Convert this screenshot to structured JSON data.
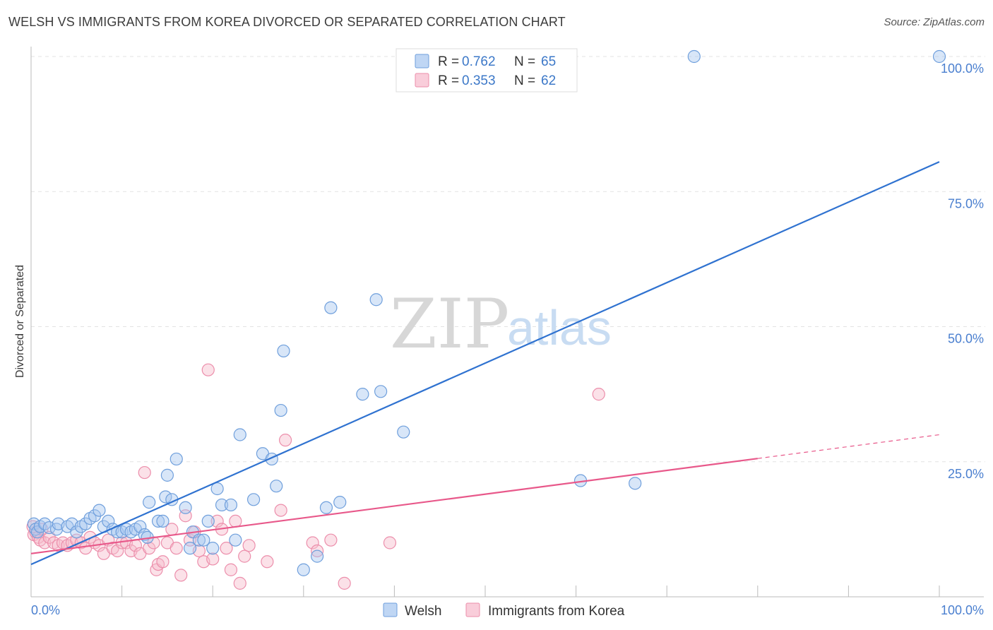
{
  "title": "WELSH VS IMMIGRANTS FROM KOREA DIVORCED OR SEPARATED CORRELATION CHART",
  "source": "Source: ZipAtlas.com",
  "watermark": {
    "zip": "ZIP",
    "atlas": "atlas"
  },
  "colors": {
    "welsh_fill": "#a9c8f0",
    "welsh_stroke": "#6f9fdc",
    "welsh_line": "#2f72d0",
    "korea_fill": "#f7bccd",
    "korea_stroke": "#ec8eab",
    "korea_line": "#e8588a",
    "grid": "#e3e3e3",
    "tick": "#4a7fcf"
  },
  "legend": {
    "rows": [
      {
        "r_label": "R =",
        "r_value": "0.762",
        "n_label": "N =",
        "n_value": "65"
      },
      {
        "r_label": "R =",
        "r_value": "0.353",
        "n_label": "N =",
        "n_value": "62"
      }
    ]
  },
  "bottom_legend": {
    "welsh": "Welsh",
    "korea": "Immigrants from Korea"
  },
  "chart_data": {
    "type": "scatter",
    "title": "WELSH VS IMMIGRANTS FROM KOREA DIVORCED OR SEPARATED CORRELATION CHART",
    "xlabel": "",
    "ylabel": "Divorced or Separated",
    "xlim": [
      0,
      100
    ],
    "ylim": [
      0,
      100
    ],
    "x_tick_labels": [
      "0.0%",
      "100.0%"
    ],
    "y_ticks": [
      {
        "value": 25,
        "label": "25.0%"
      },
      {
        "value": 50,
        "label": "50.0%"
      },
      {
        "value": 75,
        "label": "75.0%"
      },
      {
        "value": 100,
        "label": "100.0%"
      }
    ],
    "series": [
      {
        "name": "Welsh",
        "r": 0.762,
        "n": 65,
        "trend": {
          "x0": 0,
          "y0": 6.0,
          "x1": 100,
          "y1": 80.5,
          "dashed_from": null
        },
        "points": [
          [
            0.3,
            13.5
          ],
          [
            0.5,
            12.5
          ],
          [
            0.7,
            12.0
          ],
          [
            1.0,
            13.0
          ],
          [
            1.5,
            13.5
          ],
          [
            2.0,
            12.8
          ],
          [
            2.8,
            12.5
          ],
          [
            3.0,
            13.5
          ],
          [
            4.0,
            13.0
          ],
          [
            4.5,
            13.5
          ],
          [
            5.0,
            12.0
          ],
          [
            5.5,
            13.0
          ],
          [
            6.0,
            13.5
          ],
          [
            6.5,
            14.5
          ],
          [
            7.0,
            15.0
          ],
          [
            7.5,
            16.0
          ],
          [
            8.0,
            13.0
          ],
          [
            8.5,
            14.0
          ],
          [
            9.0,
            12.5
          ],
          [
            9.5,
            12.0
          ],
          [
            10.0,
            12.0
          ],
          [
            10.5,
            12.5
          ],
          [
            11.0,
            12.0
          ],
          [
            11.5,
            12.5
          ],
          [
            12.0,
            13.0
          ],
          [
            12.5,
            11.5
          ],
          [
            12.8,
            11.0
          ],
          [
            13.0,
            17.5
          ],
          [
            14.0,
            14.0
          ],
          [
            14.5,
            14.0
          ],
          [
            14.8,
            18.5
          ],
          [
            15.0,
            22.5
          ],
          [
            15.5,
            18.0
          ],
          [
            16.0,
            25.5
          ],
          [
            17.0,
            16.5
          ],
          [
            17.5,
            9.0
          ],
          [
            17.8,
            12.0
          ],
          [
            18.5,
            10.5
          ],
          [
            19.0,
            10.5
          ],
          [
            19.5,
            14.0
          ],
          [
            20.0,
            9.0
          ],
          [
            20.5,
            20.0
          ],
          [
            21.0,
            17.0
          ],
          [
            22.0,
            17.0
          ],
          [
            22.5,
            10.5
          ],
          [
            23.0,
            30.0
          ],
          [
            24.5,
            18.0
          ],
          [
            25.5,
            26.5
          ],
          [
            26.5,
            25.5
          ],
          [
            27.0,
            20.5
          ],
          [
            27.5,
            34.5
          ],
          [
            27.8,
            45.5
          ],
          [
            30.0,
            5.0
          ],
          [
            31.5,
            7.5
          ],
          [
            32.5,
            16.5
          ],
          [
            33.0,
            53.5
          ],
          [
            34.0,
            17.5
          ],
          [
            36.5,
            37.5
          ],
          [
            38.0,
            55.0
          ],
          [
            38.5,
            38.0
          ],
          [
            41.0,
            30.5
          ],
          [
            60.5,
            21.5
          ],
          [
            66.5,
            21.0
          ],
          [
            73.0,
            100.0
          ],
          [
            100.0,
            100.0
          ]
        ]
      },
      {
        "name": "Immigrants from Korea",
        "r": 0.353,
        "n": 62,
        "trend": {
          "x0": 0,
          "y0": 8.0,
          "x1": 100,
          "y1": 30.0,
          "dashed_from": 80
        },
        "points": [
          [
            0.3,
            11.5
          ],
          [
            0.5,
            12.0
          ],
          [
            0.8,
            11.0
          ],
          [
            1.0,
            10.5
          ],
          [
            1.5,
            10.0
          ],
          [
            2.0,
            11.0
          ],
          [
            2.5,
            10.0
          ],
          [
            3.0,
            9.5
          ],
          [
            3.5,
            10.0
          ],
          [
            4.0,
            9.5
          ],
          [
            4.5,
            10.0
          ],
          [
            5.0,
            10.5
          ],
          [
            5.5,
            10.0
          ],
          [
            6.0,
            9.0
          ],
          [
            6.5,
            11.0
          ],
          [
            7.0,
            10.0
          ],
          [
            7.5,
            9.5
          ],
          [
            8.0,
            8.0
          ],
          [
            8.5,
            10.5
          ],
          [
            9.0,
            9.0
          ],
          [
            9.5,
            8.5
          ],
          [
            10.0,
            10.0
          ],
          [
            10.5,
            10.0
          ],
          [
            11.0,
            8.5
          ],
          [
            11.5,
            9.5
          ],
          [
            12.0,
            8.0
          ],
          [
            12.5,
            23.0
          ],
          [
            13.0,
            9.0
          ],
          [
            13.5,
            10.0
          ],
          [
            13.8,
            5.0
          ],
          [
            14.0,
            6.0
          ],
          [
            14.5,
            6.5
          ],
          [
            15.0,
            10.0
          ],
          [
            15.5,
            12.5
          ],
          [
            16.0,
            9.0
          ],
          [
            16.5,
            4.0
          ],
          [
            17.0,
            15.0
          ],
          [
            17.5,
            10.5
          ],
          [
            18.0,
            12.0
          ],
          [
            18.5,
            8.5
          ],
          [
            19.0,
            6.5
          ],
          [
            19.5,
            42.0
          ],
          [
            20.0,
            7.0
          ],
          [
            20.5,
            14.0
          ],
          [
            21.0,
            12.5
          ],
          [
            21.5,
            9.0
          ],
          [
            22.0,
            5.0
          ],
          [
            22.5,
            14.0
          ],
          [
            23.0,
            2.5
          ],
          [
            23.5,
            7.5
          ],
          [
            24.0,
            9.5
          ],
          [
            26.0,
            6.5
          ],
          [
            27.5,
            16.0
          ],
          [
            28.0,
            29.0
          ],
          [
            31.0,
            10.0
          ],
          [
            31.5,
            8.5
          ],
          [
            33.0,
            10.5
          ],
          [
            34.5,
            2.5
          ],
          [
            39.5,
            10.0
          ],
          [
            62.5,
            37.5
          ],
          [
            0.2,
            13.0
          ],
          [
            1.2,
            12.5
          ]
        ]
      }
    ]
  }
}
